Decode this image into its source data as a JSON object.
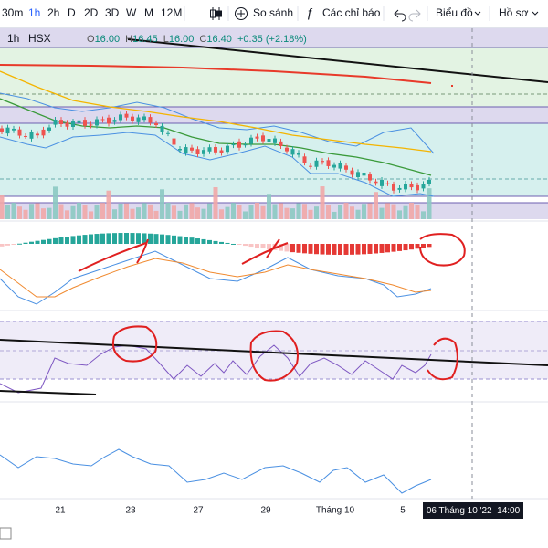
{
  "toolbar": {
    "intervals": [
      "30m",
      "1h",
      "2h",
      "D",
      "2D",
      "3D",
      "W",
      "M",
      "12M"
    ],
    "compare": "So sánh",
    "indicators": "Các chỉ báo",
    "chart": "Biểu đồ",
    "profile": "Hồ sơ"
  },
  "legend": {
    "interval": "1h",
    "exchange": "HSX",
    "open_label": "O",
    "open": "16.00",
    "high_label": "H",
    "high": "16.45",
    "low_label": "L",
    "low": "16.00",
    "close_label": "C",
    "close": "16.40",
    "change": "+0.35 (+2.18%)"
  },
  "x_axis": {
    "labels": [
      "21",
      "23",
      "27",
      "29",
      "Tháng 10",
      "5"
    ],
    "crosshair": "06 Tháng 10 '22  14:00"
  }
}
